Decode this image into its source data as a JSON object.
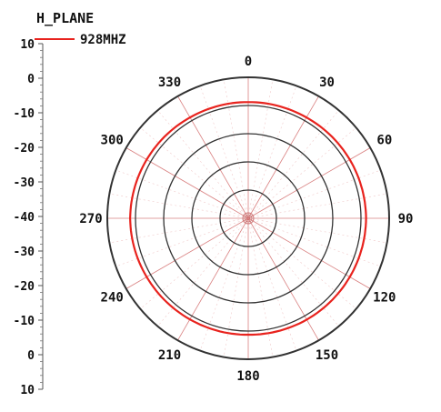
{
  "chart_data": {
    "type": "polar",
    "title": "H_PLANE",
    "legend": [
      {
        "label": "928MHZ",
        "color": "#e8231e"
      }
    ],
    "angle_labels": [
      "0",
      "30",
      "60",
      "90",
      "120",
      "150",
      "180",
      "210",
      "240",
      "270",
      "300",
      "330"
    ],
    "radial_scale_labels": [
      "10",
      "0",
      "-10",
      "-20",
      "-30",
      "-40",
      "-30",
      "-20",
      "-10",
      "0",
      "10"
    ],
    "r_range": [
      -40,
      10
    ],
    "ring_values": [
      -30,
      -20,
      -10,
      0,
      10
    ],
    "spokes_every_deg": 30,
    "series": [
      {
        "name": "928MHZ",
        "color": "#e8231e",
        "theta": [
          0,
          30,
          60,
          90,
          120,
          150,
          180,
          210,
          240,
          270,
          300,
          330,
          360
        ],
        "r": [
          1.2,
          1.3,
          1.6,
          1.8,
          1.6,
          1.5,
          1.3,
          1.4,
          1.6,
          1.9,
          1.6,
          1.3,
          1.2
        ]
      }
    ]
  }
}
